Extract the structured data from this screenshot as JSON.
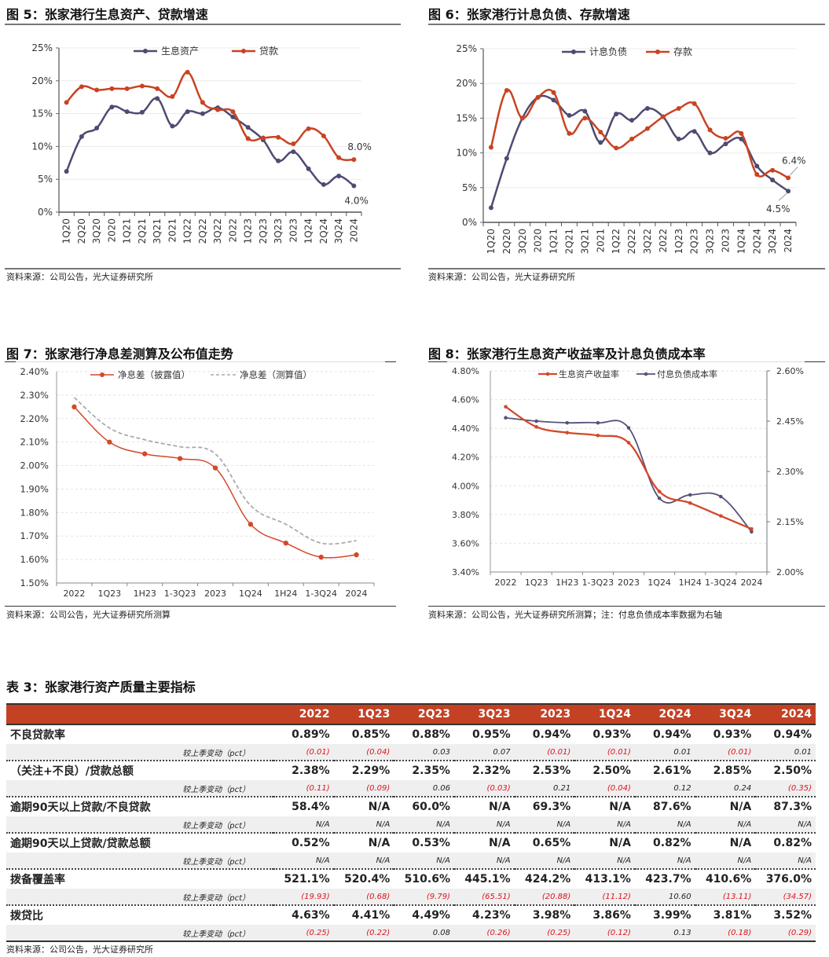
{
  "figures": {
    "fig5": {
      "title": "图 5：张家港行生息资产、贷款增速",
      "source": "资料来源：公司公告，光大证券研究所"
    },
    "fig6": {
      "title": "图 6：张家港行计息负债、存款增速",
      "source": "资料来源：公司公告，光大证券研究所"
    },
    "fig7": {
      "title": "图 7：张家港行净息差测算及公布值走势",
      "source": "资料来源：公司公告，光大证券研究所测算"
    },
    "fig8": {
      "title": "图 8：张家港行生息资产收益率及计息负债成本率",
      "source": "资料来源：公司公告，光大证券研究所测算；注：付息负债成本率数据为右轴"
    }
  },
  "chart_data": [
    {
      "id": "fig5",
      "type": "line",
      "title": "张家港行生息资产、贷款增速",
      "categories": [
        "1Q20",
        "2Q20",
        "3Q20",
        "2020",
        "1Q21",
        "2Q21",
        "3Q21",
        "2021",
        "1Q22",
        "2Q22",
        "3Q22",
        "2022",
        "1Q23",
        "2Q23",
        "3Q23",
        "2023",
        "1Q24",
        "2Q24",
        "3Q24",
        "2024"
      ],
      "series": [
        {
          "name": "生息资产",
          "color": "#4e4b72",
          "values": [
            6.2,
            11.5,
            12.8,
            16.0,
            15.3,
            15.2,
            17.3,
            13.1,
            15.3,
            15.0,
            15.9,
            14.5,
            12.9,
            11.0,
            7.8,
            9.2,
            6.6,
            4.2,
            5.5,
            4.0
          ]
        },
        {
          "name": "贷款",
          "color": "#c94322",
          "values": [
            16.7,
            19.1,
            18.6,
            18.8,
            18.8,
            19.2,
            18.8,
            17.6,
            21.3,
            16.7,
            15.6,
            15.3,
            11.2,
            11.3,
            11.4,
            10.4,
            12.7,
            11.6,
            8.3,
            8.0
          ]
        }
      ],
      "annotations": [
        {
          "series": "贷款",
          "text": "8.0%"
        },
        {
          "series": "生息资产",
          "text": "4.0%"
        }
      ],
      "yticks": [
        "0%",
        "5%",
        "10%",
        "15%",
        "20%",
        "25%"
      ],
      "ylim": [
        0,
        25
      ],
      "legend": "top-center",
      "grid": true
    },
    {
      "id": "fig6",
      "type": "line",
      "title": "张家港行计息负债、存款增速",
      "categories": [
        "1Q20",
        "2Q20",
        "3Q20",
        "2020",
        "1Q21",
        "2Q21",
        "3Q21",
        "2021",
        "1Q22",
        "2Q22",
        "3Q22",
        "2022",
        "1Q23",
        "2Q23",
        "3Q23",
        "2023",
        "1Q24",
        "2Q24",
        "3Q24",
        "2024"
      ],
      "series": [
        {
          "name": "计息负债",
          "color": "#4e4b72",
          "values": [
            2.1,
            9.2,
            15.0,
            18.0,
            17.6,
            15.4,
            16.0,
            11.5,
            15.6,
            14.7,
            16.4,
            15.2,
            12.0,
            13.1,
            10.0,
            11.3,
            12.0,
            8.1,
            6.1,
            4.5
          ]
        },
        {
          "name": "存款",
          "color": "#c94322",
          "values": [
            10.8,
            19.0,
            15.0,
            18.0,
            18.7,
            12.8,
            15.0,
            13.0,
            10.7,
            12.0,
            13.5,
            15.2,
            16.4,
            17.1,
            13.3,
            12.1,
            12.8,
            6.9,
            7.5,
            6.4
          ]
        }
      ],
      "annotations": [
        {
          "series": "存款",
          "text": "6.4%"
        },
        {
          "series": "计息负债",
          "text": "4.5%"
        }
      ],
      "yticks": [
        "0%",
        "5%",
        "10%",
        "15%",
        "20%",
        "25%"
      ],
      "ylim": [
        0,
        25
      ],
      "legend": "top-center",
      "grid": true
    },
    {
      "id": "fig7",
      "type": "line",
      "title": "张家港行净息差测算及公布值走势",
      "categories": [
        "2022",
        "1Q23",
        "1H23",
        "1-3Q23",
        "2023",
        "1Q24",
        "1H24",
        "1-3Q24",
        "2024"
      ],
      "series": [
        {
          "name": "净息差（披露值）",
          "color": "#d4482a",
          "style": "solid-marker",
          "values": [
            2.25,
            2.1,
            2.05,
            2.03,
            1.99,
            1.75,
            1.67,
            1.61,
            1.62
          ]
        },
        {
          "name": "净息差（测算值）",
          "color": "#aaaaaa",
          "style": "dashed",
          "values": [
            2.29,
            2.16,
            2.11,
            2.08,
            2.05,
            1.83,
            1.75,
            1.67,
            1.68
          ]
        }
      ],
      "yticks": [
        "1.50%",
        "1.60%",
        "1.70%",
        "1.80%",
        "1.90%",
        "2.00%",
        "2.10%",
        "2.20%",
        "2.30%",
        "2.40%"
      ],
      "ylim": [
        1.5,
        2.4
      ],
      "legend": "top-center",
      "grid": true
    },
    {
      "id": "fig8",
      "type": "line",
      "title": "张家港行生息资产收益率及计息负债成本率",
      "categories": [
        "2022",
        "1Q23",
        "1H23",
        "1-3Q23",
        "2023",
        "1Q24",
        "1H24",
        "1-3Q24",
        "2024"
      ],
      "series": [
        {
          "name": "生息资产收益率",
          "color": "#d4482a",
          "axis": "left",
          "values": [
            4.55,
            4.41,
            4.37,
            4.35,
            4.3,
            3.96,
            3.88,
            3.79,
            3.7
          ]
        },
        {
          "name": "付息负债成本率",
          "color": "#55527a",
          "axis": "right",
          "values": [
            2.46,
            2.45,
            2.445,
            2.445,
            2.43,
            2.22,
            2.23,
            2.225,
            2.12
          ]
        }
      ],
      "yticks_left": [
        "3.40%",
        "3.60%",
        "3.80%",
        "4.00%",
        "4.20%",
        "4.40%",
        "4.60%",
        "4.80%"
      ],
      "ylim_left": [
        3.4,
        4.8
      ],
      "yticks_right": [
        "2.00%",
        "2.15%",
        "2.30%",
        "2.45%",
        "2.60%"
      ],
      "ylim_right": [
        2.0,
        2.6
      ],
      "legend": "top-center",
      "grid": true
    }
  ],
  "table": {
    "title": "表 3：张家港行资产质量主要指标",
    "columns": [
      "",
      "2022",
      "1Q23",
      "2Q23",
      "3Q23",
      "2023",
      "1Q24",
      "2Q24",
      "3Q24",
      "2024"
    ],
    "sub_label": "较上季变动（pct）",
    "rows": [
      {
        "label": "不良贷款率",
        "values": [
          "0.89%",
          "0.85%",
          "0.88%",
          "0.95%",
          "0.94%",
          "0.93%",
          "0.94%",
          "0.93%",
          "0.94%"
        ],
        "changes": [
          "(0.01)",
          "(0.04)",
          "0.03",
          "0.07",
          "(0.01)",
          "(0.01)",
          "0.01",
          "(0.01)",
          "0.01"
        ]
      },
      {
        "label": "（关注+不良）/贷款总额",
        "values": [
          "2.38%",
          "2.29%",
          "2.35%",
          "2.32%",
          "2.53%",
          "2.50%",
          "2.61%",
          "2.85%",
          "2.50%"
        ],
        "changes": [
          "(0.11)",
          "(0.09)",
          "0.06",
          "(0.03)",
          "0.21",
          "(0.04)",
          "0.12",
          "0.24",
          "(0.35)"
        ]
      },
      {
        "label": "逾期90天以上贷款/不良贷款",
        "values": [
          "58.4%",
          "N/A",
          "60.0%",
          "N/A",
          "69.3%",
          "N/A",
          "87.6%",
          "N/A",
          "87.3%"
        ],
        "changes": [
          "N/A",
          "N/A",
          "N/A",
          "N/A",
          "N/A",
          "N/A",
          "N/A",
          "N/A",
          "N/A"
        ]
      },
      {
        "label": "逾期90天以上贷款/贷款总额",
        "values": [
          "0.52%",
          "N/A",
          "0.53%",
          "N/A",
          "0.65%",
          "N/A",
          "0.82%",
          "N/A",
          "0.82%"
        ],
        "changes": [
          "N/A",
          "N/A",
          "N/A",
          "N/A",
          "N/A",
          "N/A",
          "N/A",
          "N/A",
          "N/A"
        ]
      },
      {
        "label": "拨备覆盖率",
        "values": [
          "521.1%",
          "520.4%",
          "510.6%",
          "445.1%",
          "424.2%",
          "413.1%",
          "423.7%",
          "410.6%",
          "376.0%"
        ],
        "changes": [
          "(19.93)",
          "(0.68)",
          "(9.79)",
          "(65.51)",
          "(20.88)",
          "(11.12)",
          "10.60",
          "(13.11)",
          "(34.57)"
        ]
      },
      {
        "label": "拨贷比",
        "values": [
          "4.63%",
          "4.41%",
          "4.49%",
          "4.23%",
          "3.98%",
          "3.86%",
          "3.99%",
          "3.81%",
          "3.52%"
        ],
        "changes": [
          "(0.25)",
          "(0.22)",
          "0.08",
          "(0.26)",
          "(0.25)",
          "(0.12)",
          "0.13",
          "(0.18)",
          "(0.29)"
        ]
      }
    ],
    "header_color": "#c44124",
    "negative_color": "#e0101a",
    "source": "资料来源：公司公告，光大证券研究所"
  }
}
